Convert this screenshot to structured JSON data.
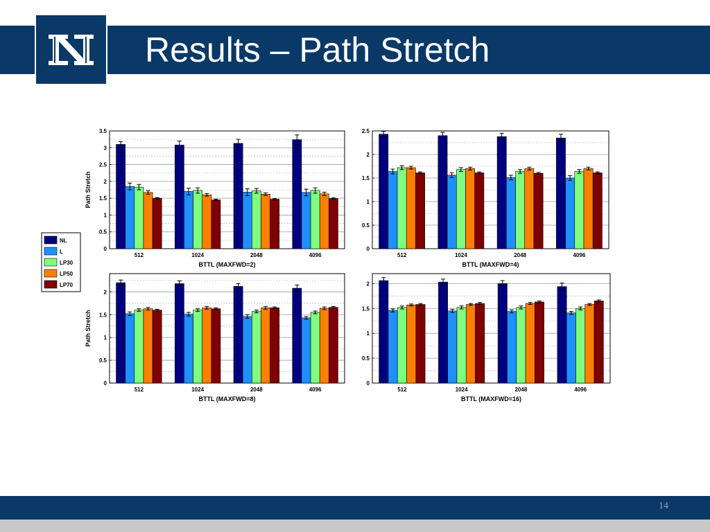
{
  "slide": {
    "title": "Results – Path Stretch",
    "slide_number": "14",
    "logo_icon": "university-N-logo",
    "colors": {
      "header": "#0a3867",
      "footer_grey": "#c8c8c8"
    }
  },
  "legend": {
    "entries": [
      {
        "label": "NL",
        "color": "#00007f"
      },
      {
        "label": "L",
        "color": "#1e90ff"
      },
      {
        "label": "LP30",
        "color": "#7fff7f"
      },
      {
        "label": "LP50",
        "color": "#ff7f00"
      },
      {
        "label": "LP70",
        "color": "#7f0000"
      }
    ]
  },
  "chart_data": [
    {
      "type": "bar",
      "categories": [
        "512",
        "1024",
        "2048",
        "4096"
      ],
      "xlabel": "BTTL (MAXFWD=2)",
      "ylabel": "Path Stretch",
      "ylim": [
        0,
        3.5
      ],
      "yticks": [
        "0",
        "0.5",
        "1",
        "1.5",
        "2",
        "2.5",
        "3",
        "3.5"
      ],
      "grid": true,
      "error_bars": true,
      "series": [
        {
          "name": "NL",
          "values": [
            3.1,
            3.08,
            3.13,
            3.24
          ],
          "errors": [
            0.08,
            0.12,
            0.12,
            0.14
          ]
        },
        {
          "name": "L",
          "values": [
            1.85,
            1.7,
            1.68,
            1.67
          ],
          "errors": [
            0.1,
            0.1,
            0.1,
            0.1
          ]
        },
        {
          "name": "LP30",
          "values": [
            1.83,
            1.73,
            1.72,
            1.73
          ],
          "errors": [
            0.08,
            0.08,
            0.07,
            0.08
          ]
        },
        {
          "name": "LP50",
          "values": [
            1.67,
            1.6,
            1.62,
            1.63
          ],
          "errors": [
            0.05,
            0.04,
            0.04,
            0.05
          ]
        },
        {
          "name": "LP70",
          "values": [
            1.5,
            1.45,
            1.47,
            1.49
          ],
          "errors": [
            0.02,
            0.02,
            0.02,
            0.02
          ]
        }
      ]
    },
    {
      "type": "bar",
      "categories": [
        "512",
        "1024",
        "2048",
        "4096"
      ],
      "xlabel": "BTTL (MAXFWD=4)",
      "ylabel": "",
      "ylim": [
        0,
        2.5
      ],
      "yticks": [
        "0",
        "0.5",
        "1",
        "1.5",
        "2",
        "2.5"
      ],
      "grid": true,
      "error_bars": true,
      "series": [
        {
          "name": "NL",
          "values": [
            2.43,
            2.4,
            2.38,
            2.35
          ],
          "errors": [
            0.06,
            0.07,
            0.07,
            0.08
          ]
        },
        {
          "name": "L",
          "values": [
            1.64,
            1.56,
            1.51,
            1.5
          ],
          "errors": [
            0.05,
            0.05,
            0.05,
            0.05
          ]
        },
        {
          "name": "LP30",
          "values": [
            1.72,
            1.68,
            1.64,
            1.64
          ],
          "errors": [
            0.04,
            0.04,
            0.04,
            0.04
          ]
        },
        {
          "name": "LP50",
          "values": [
            1.72,
            1.7,
            1.7,
            1.7
          ],
          "errors": [
            0.03,
            0.03,
            0.03,
            0.03
          ]
        },
        {
          "name": "LP70",
          "values": [
            1.61,
            1.61,
            1.6,
            1.61
          ],
          "errors": [
            0.02,
            0.02,
            0.02,
            0.02
          ]
        }
      ]
    },
    {
      "type": "bar",
      "categories": [
        "512",
        "1024",
        "2048",
        "4096"
      ],
      "xlabel": "BTTL (MAXFWD=8)",
      "ylabel": "Path Stretch",
      "ylim": [
        0,
        2.4
      ],
      "yticks": [
        "0",
        "0.5",
        "1",
        "1.5",
        "2"
      ],
      "grid": true,
      "error_bars": true,
      "series": [
        {
          "name": "NL",
          "values": [
            2.2,
            2.18,
            2.12,
            2.08
          ],
          "errors": [
            0.06,
            0.06,
            0.06,
            0.07
          ]
        },
        {
          "name": "L",
          "values": [
            1.52,
            1.51,
            1.46,
            1.43
          ],
          "errors": [
            0.04,
            0.04,
            0.04,
            0.03
          ]
        },
        {
          "name": "LP30",
          "values": [
            1.6,
            1.6,
            1.57,
            1.55
          ],
          "errors": [
            0.03,
            0.03,
            0.03,
            0.03
          ]
        },
        {
          "name": "LP50",
          "values": [
            1.63,
            1.65,
            1.65,
            1.64
          ],
          "errors": [
            0.03,
            0.03,
            0.03,
            0.03
          ]
        },
        {
          "name": "LP70",
          "values": [
            1.6,
            1.63,
            1.65,
            1.66
          ],
          "errors": [
            0.02,
            0.02,
            0.02,
            0.02
          ]
        }
      ]
    },
    {
      "type": "bar",
      "categories": [
        "512",
        "1024",
        "2048",
        "4096"
      ],
      "xlabel": "BTTL (MAXFWD=16)",
      "ylabel": "",
      "ylim": [
        0,
        2.2
      ],
      "yticks": [
        "0",
        "0.5",
        "1",
        "1.5",
        "2"
      ],
      "grid": true,
      "error_bars": true,
      "series": [
        {
          "name": "NL",
          "values": [
            2.06,
            2.03,
            2.0,
            1.94
          ],
          "errors": [
            0.06,
            0.06,
            0.06,
            0.07
          ]
        },
        {
          "name": "L",
          "values": [
            1.46,
            1.45,
            1.44,
            1.41
          ],
          "errors": [
            0.03,
            0.03,
            0.03,
            0.03
          ]
        },
        {
          "name": "LP30",
          "values": [
            1.52,
            1.52,
            1.52,
            1.5
          ],
          "errors": [
            0.03,
            0.03,
            0.03,
            0.03
          ]
        },
        {
          "name": "LP50",
          "values": [
            1.57,
            1.58,
            1.6,
            1.58
          ],
          "errors": [
            0.02,
            0.02,
            0.02,
            0.02
          ]
        },
        {
          "name": "LP70",
          "values": [
            1.58,
            1.6,
            1.63,
            1.65
          ],
          "errors": [
            0.02,
            0.02,
            0.02,
            0.02
          ]
        }
      ]
    }
  ]
}
